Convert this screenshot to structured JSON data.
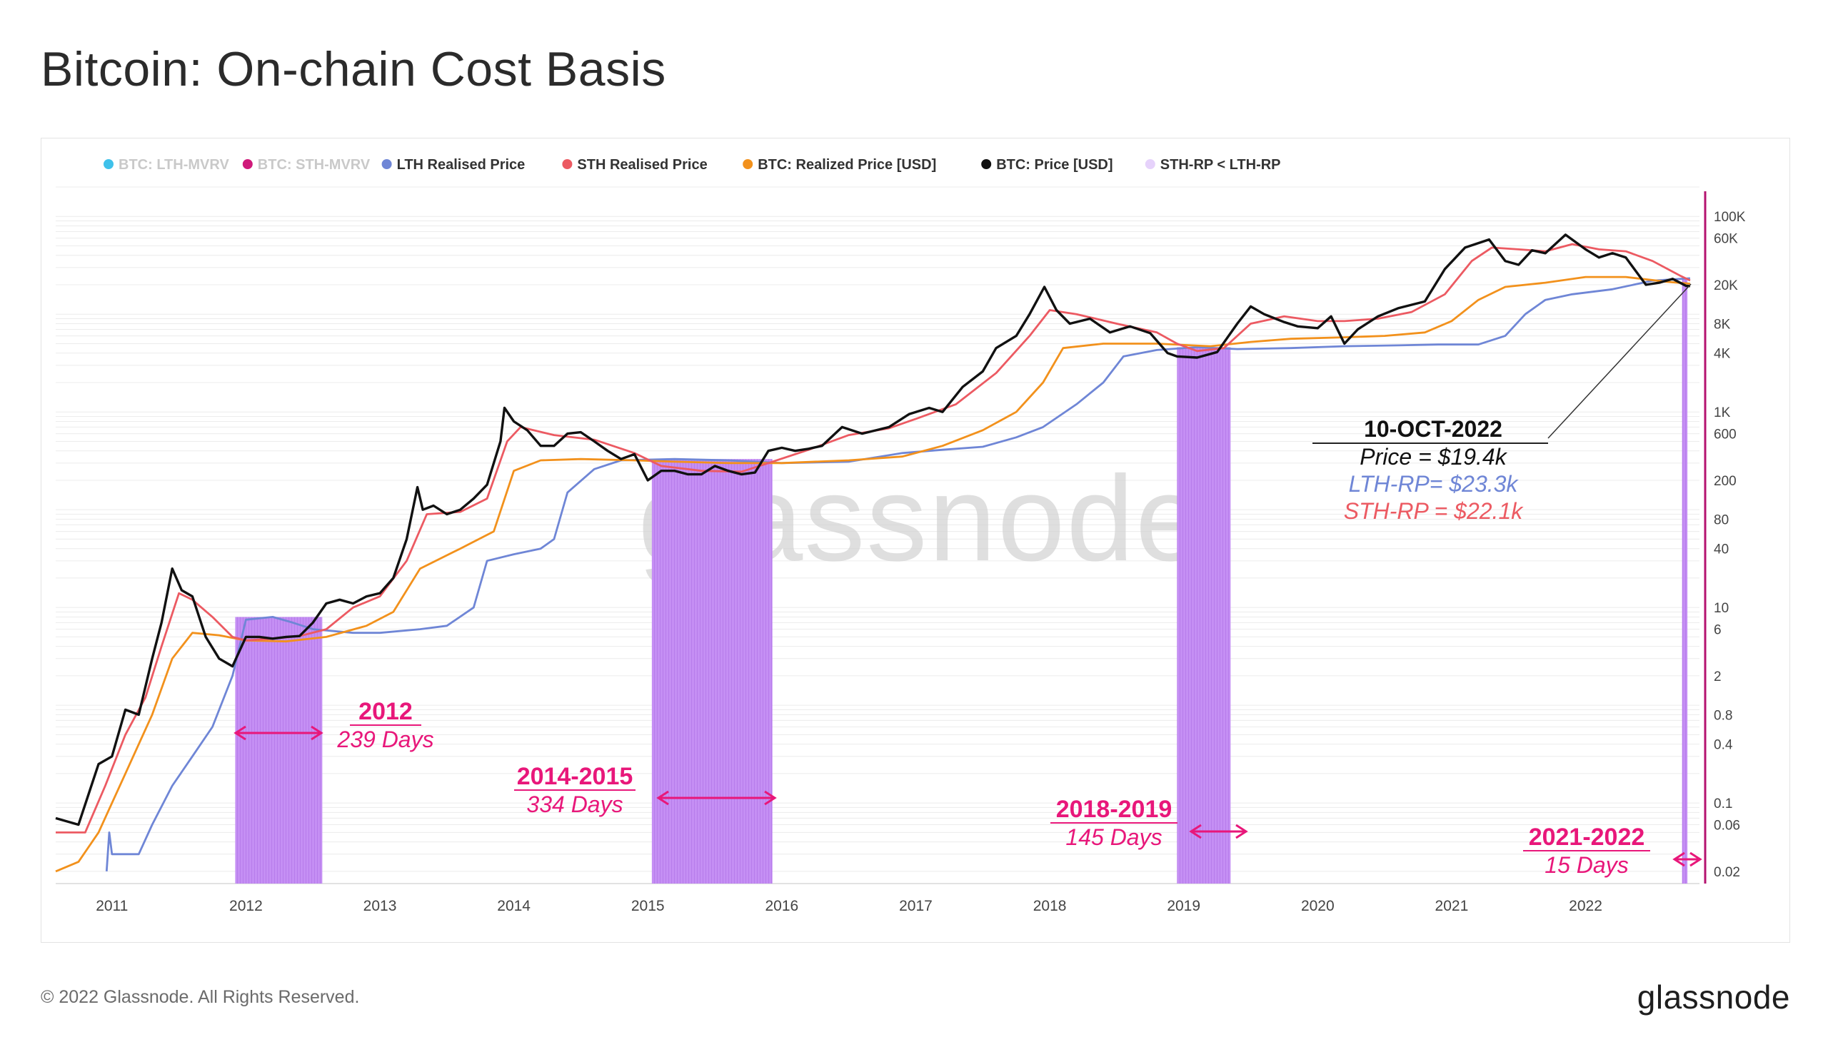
{
  "title": "Bitcoin: On-chain Cost Basis",
  "footer": "© 2022 Glassnode. All Rights Reserved.",
  "brand": "glassnode",
  "watermark": "glassnode",
  "colors": {
    "lth": "#6f86d6",
    "sth": "#ec5a62",
    "realized": "#f2911c",
    "price": "#111111",
    "shade": "#c490f2",
    "annot": "#e8177a",
    "axis": "#b4136f"
  },
  "chart_data": {
    "type": "line",
    "y_scale": "log",
    "ylim": [
      0.015,
      200000
    ],
    "xlim": [
      2010.58,
      2022.85
    ],
    "x_tick_labels": [
      "2011",
      "2012",
      "2013",
      "2014",
      "2015",
      "2016",
      "2017",
      "2018",
      "2019",
      "2020",
      "2021",
      "2022"
    ],
    "y_tick_labels": [
      "100K",
      "60K",
      "20K",
      "8K",
      "4K",
      "1K",
      "600",
      "200",
      "80",
      "40",
      "10",
      "6",
      "2",
      "0.8",
      "0.4",
      "0.1",
      "0.06",
      "0.02"
    ],
    "legend": [
      {
        "label": "BTC: LTH-MVRV",
        "color": "#3fc1ea",
        "muted": true
      },
      {
        "label": "BTC: STH-MVRV",
        "color": "#cf1a7a",
        "muted": true
      },
      {
        "label": "LTH Realised Price",
        "color": "#6f86d6",
        "muted": false
      },
      {
        "label": "STH Realised Price",
        "color": "#ec5a62",
        "muted": false
      },
      {
        "label": "BTC: Realized Price [USD]",
        "color": "#f2911c",
        "muted": false
      },
      {
        "label": "BTC: Price [USD]",
        "color": "#111111",
        "muted": false
      },
      {
        "label": "STH-RP < LTH-RP",
        "color": "#e6d2fb",
        "muted": false
      }
    ],
    "series": [
      {
        "name": "BTC: Price [USD]",
        "key": "price",
        "points": [
          [
            2010.58,
            0.07
          ],
          [
            2010.75,
            0.06
          ],
          [
            2010.9,
            0.25
          ],
          [
            2011.0,
            0.3
          ],
          [
            2011.1,
            0.9
          ],
          [
            2011.2,
            0.8
          ],
          [
            2011.3,
            3
          ],
          [
            2011.37,
            7
          ],
          [
            2011.45,
            25
          ],
          [
            2011.52,
            15
          ],
          [
            2011.6,
            13
          ],
          [
            2011.7,
            5
          ],
          [
            2011.8,
            3
          ],
          [
            2011.9,
            2.5
          ],
          [
            2012.0,
            5
          ],
          [
            2012.1,
            5
          ],
          [
            2012.2,
            4.8
          ],
          [
            2012.3,
            5
          ],
          [
            2012.4,
            5.1
          ],
          [
            2012.5,
            7
          ],
          [
            2012.6,
            11
          ],
          [
            2012.7,
            12
          ],
          [
            2012.8,
            11
          ],
          [
            2012.9,
            13
          ],
          [
            2013.0,
            14
          ],
          [
            2013.1,
            20
          ],
          [
            2013.2,
            50
          ],
          [
            2013.28,
            170
          ],
          [
            2013.32,
            100
          ],
          [
            2013.4,
            110
          ],
          [
            2013.5,
            90
          ],
          [
            2013.6,
            100
          ],
          [
            2013.7,
            130
          ],
          [
            2013.8,
            180
          ],
          [
            2013.9,
            500
          ],
          [
            2013.93,
            1100
          ],
          [
            2014.0,
            800
          ],
          [
            2014.1,
            650
          ],
          [
            2014.2,
            450
          ],
          [
            2014.3,
            450
          ],
          [
            2014.4,
            600
          ],
          [
            2014.5,
            620
          ],
          [
            2014.6,
            500
          ],
          [
            2014.7,
            400
          ],
          [
            2014.8,
            330
          ],
          [
            2014.9,
            370
          ],
          [
            2015.0,
            200
          ],
          [
            2015.1,
            250
          ],
          [
            2015.2,
            250
          ],
          [
            2015.3,
            230
          ],
          [
            2015.4,
            230
          ],
          [
            2015.5,
            280
          ],
          [
            2015.6,
            250
          ],
          [
            2015.7,
            230
          ],
          [
            2015.8,
            240
          ],
          [
            2015.9,
            400
          ],
          [
            2016.0,
            430
          ],
          [
            2016.1,
            400
          ],
          [
            2016.2,
            420
          ],
          [
            2016.3,
            450
          ],
          [
            2016.45,
            700
          ],
          [
            2016.6,
            600
          ],
          [
            2016.8,
            700
          ],
          [
            2016.95,
            950
          ],
          [
            2017.1,
            1100
          ],
          [
            2017.2,
            1000
          ],
          [
            2017.35,
            1800
          ],
          [
            2017.5,
            2600
          ],
          [
            2017.6,
            4500
          ],
          [
            2017.75,
            6000
          ],
          [
            2017.85,
            10000
          ],
          [
            2017.96,
            19000
          ],
          [
            2018.05,
            11000
          ],
          [
            2018.15,
            8000
          ],
          [
            2018.3,
            9000
          ],
          [
            2018.45,
            6500
          ],
          [
            2018.6,
            7500
          ],
          [
            2018.75,
            6400
          ],
          [
            2018.88,
            4000
          ],
          [
            2018.95,
            3700
          ],
          [
            2019.1,
            3600
          ],
          [
            2019.25,
            4100
          ],
          [
            2019.4,
            8000
          ],
          [
            2019.5,
            12000
          ],
          [
            2019.6,
            10000
          ],
          [
            2019.75,
            8300
          ],
          [
            2019.85,
            7500
          ],
          [
            2020.0,
            7200
          ],
          [
            2020.1,
            9500
          ],
          [
            2020.2,
            5000
          ],
          [
            2020.3,
            7000
          ],
          [
            2020.45,
            9500
          ],
          [
            2020.6,
            11500
          ],
          [
            2020.8,
            13500
          ],
          [
            2020.95,
            29000
          ],
          [
            2021.1,
            48000
          ],
          [
            2021.28,
            58000
          ],
          [
            2021.4,
            35000
          ],
          [
            2021.5,
            32000
          ],
          [
            2021.6,
            45000
          ],
          [
            2021.7,
            42000
          ],
          [
            2021.85,
            65000
          ],
          [
            2022.0,
            46000
          ],
          [
            2022.1,
            38000
          ],
          [
            2022.2,
            42000
          ],
          [
            2022.3,
            38000
          ],
          [
            2022.45,
            20000
          ],
          [
            2022.55,
            21000
          ],
          [
            2022.65,
            23000
          ],
          [
            2022.75,
            19500
          ],
          [
            2022.78,
            19400
          ]
        ]
      },
      {
        "name": "STH Realised Price",
        "key": "sth",
        "points": [
          [
            2010.58,
            0.05
          ],
          [
            2010.8,
            0.05
          ],
          [
            2010.95,
            0.15
          ],
          [
            2011.1,
            0.5
          ],
          [
            2011.25,
            1.2
          ],
          [
            2011.37,
            4
          ],
          [
            2011.5,
            14
          ],
          [
            2011.6,
            12
          ],
          [
            2011.75,
            8
          ],
          [
            2011.9,
            5
          ],
          [
            2012.0,
            4.6
          ],
          [
            2012.2,
            4.8
          ],
          [
            2012.4,
            5.1
          ],
          [
            2012.6,
            6
          ],
          [
            2012.8,
            10
          ],
          [
            2013.0,
            13
          ],
          [
            2013.2,
            30
          ],
          [
            2013.35,
            90
          ],
          [
            2013.6,
            95
          ],
          [
            2013.8,
            130
          ],
          [
            2013.95,
            500
          ],
          [
            2014.05,
            700
          ],
          [
            2014.3,
            580
          ],
          [
            2014.6,
            520
          ],
          [
            2014.9,
            380
          ],
          [
            2015.1,
            280
          ],
          [
            2015.4,
            250
          ],
          [
            2015.7,
            245
          ],
          [
            2015.9,
            300
          ],
          [
            2016.2,
            410
          ],
          [
            2016.5,
            580
          ],
          [
            2016.8,
            680
          ],
          [
            2017.0,
            850
          ],
          [
            2017.3,
            1200
          ],
          [
            2017.6,
            2500
          ],
          [
            2017.85,
            6000
          ],
          [
            2018.0,
            11000
          ],
          [
            2018.2,
            10000
          ],
          [
            2018.5,
            8000
          ],
          [
            2018.8,
            6500
          ],
          [
            2018.95,
            5000
          ],
          [
            2019.1,
            4200
          ],
          [
            2019.3,
            4500
          ],
          [
            2019.5,
            8000
          ],
          [
            2019.75,
            9500
          ],
          [
            2020.0,
            8500
          ],
          [
            2020.2,
            8500
          ],
          [
            2020.45,
            9000
          ],
          [
            2020.7,
            10500
          ],
          [
            2020.95,
            16000
          ],
          [
            2021.15,
            35000
          ],
          [
            2021.3,
            48000
          ],
          [
            2021.5,
            46000
          ],
          [
            2021.7,
            44000
          ],
          [
            2021.9,
            52000
          ],
          [
            2022.1,
            46000
          ],
          [
            2022.3,
            44000
          ],
          [
            2022.5,
            35000
          ],
          [
            2022.7,
            25000
          ],
          [
            2022.78,
            22100
          ]
        ]
      },
      {
        "name": "BTC: Realized Price [USD]",
        "key": "realized",
        "points": [
          [
            2010.58,
            0.02
          ],
          [
            2010.75,
            0.025
          ],
          [
            2010.9,
            0.05
          ],
          [
            2011.1,
            0.2
          ],
          [
            2011.3,
            0.8
          ],
          [
            2011.45,
            3
          ],
          [
            2011.6,
            5.5
          ],
          [
            2011.8,
            5.2
          ],
          [
            2012.0,
            4.6
          ],
          [
            2012.3,
            4.5
          ],
          [
            2012.6,
            5
          ],
          [
            2012.9,
            6.5
          ],
          [
            2013.1,
            9
          ],
          [
            2013.3,
            25
          ],
          [
            2013.6,
            40
          ],
          [
            2013.85,
            60
          ],
          [
            2014.0,
            250
          ],
          [
            2014.2,
            320
          ],
          [
            2014.5,
            330
          ],
          [
            2014.9,
            320
          ],
          [
            2015.2,
            310
          ],
          [
            2015.6,
            300
          ],
          [
            2016.0,
            300
          ],
          [
            2016.5,
            320
          ],
          [
            2016.9,
            350
          ],
          [
            2017.2,
            450
          ],
          [
            2017.5,
            650
          ],
          [
            2017.75,
            1000
          ],
          [
            2017.95,
            2000
          ],
          [
            2018.1,
            4500
          ],
          [
            2018.4,
            5000
          ],
          [
            2018.8,
            5000
          ],
          [
            2019.2,
            4700
          ],
          [
            2019.5,
            5200
          ],
          [
            2019.8,
            5600
          ],
          [
            2020.2,
            5800
          ],
          [
            2020.5,
            6000
          ],
          [
            2020.8,
            6500
          ],
          [
            2021.0,
            8500
          ],
          [
            2021.2,
            14000
          ],
          [
            2021.4,
            19000
          ],
          [
            2021.7,
            21000
          ],
          [
            2022.0,
            24000
          ],
          [
            2022.3,
            24000
          ],
          [
            2022.6,
            21500
          ],
          [
            2022.78,
            20500
          ]
        ]
      },
      {
        "name": "LTH Realised Price",
        "key": "lth",
        "points": [
          [
            2010.96,
            0.02
          ],
          [
            2010.98,
            0.05
          ],
          [
            2011.0,
            0.03
          ],
          [
            2011.2,
            0.03
          ],
          [
            2011.3,
            0.06
          ],
          [
            2011.45,
            0.15
          ],
          [
            2011.6,
            0.3
          ],
          [
            2011.75,
            0.6
          ],
          [
            2011.9,
            2
          ],
          [
            2012.0,
            7.5
          ],
          [
            2012.2,
            8
          ],
          [
            2012.35,
            7
          ],
          [
            2012.5,
            6
          ],
          [
            2012.8,
            5.5
          ],
          [
            2013.0,
            5.5
          ],
          [
            2013.3,
            6
          ],
          [
            2013.5,
            6.5
          ],
          [
            2013.7,
            10
          ],
          [
            2013.8,
            30
          ],
          [
            2014.0,
            35
          ],
          [
            2014.2,
            40
          ],
          [
            2014.3,
            50
          ],
          [
            2014.4,
            150
          ],
          [
            2014.6,
            260
          ],
          [
            2014.8,
            320
          ],
          [
            2015.2,
            330
          ],
          [
            2015.6,
            320
          ],
          [
            2016.0,
            300
          ],
          [
            2016.5,
            310
          ],
          [
            2016.9,
            380
          ],
          [
            2017.2,
            410
          ],
          [
            2017.5,
            440
          ],
          [
            2017.75,
            550
          ],
          [
            2017.95,
            700
          ],
          [
            2018.2,
            1200
          ],
          [
            2018.4,
            2000
          ],
          [
            2018.55,
            3700
          ],
          [
            2018.8,
            4300
          ],
          [
            2019.1,
            4600
          ],
          [
            2019.4,
            4400
          ],
          [
            2019.8,
            4500
          ],
          [
            2020.2,
            4700
          ],
          [
            2020.6,
            4800
          ],
          [
            2020.9,
            4900
          ],
          [
            2021.2,
            4900
          ],
          [
            2021.4,
            6000
          ],
          [
            2021.55,
            10000
          ],
          [
            2021.7,
            14000
          ],
          [
            2021.9,
            16000
          ],
          [
            2022.2,
            18000
          ],
          [
            2022.5,
            22000
          ],
          [
            2022.78,
            23300
          ]
        ]
      }
    ],
    "shaded_regions": [
      [
        2011.92,
        2012.57
      ],
      [
        2015.03,
        2015.93
      ],
      [
        2018.95,
        2019.35
      ],
      [
        2022.72,
        2022.76
      ]
    ],
    "cycles": [
      {
        "label": "2012",
        "days": "239 Days"
      },
      {
        "label": "2014-2015",
        "days": "334 Days"
      },
      {
        "label": "2018-2019",
        "days": "145 Days"
      },
      {
        "label": "2021-2022",
        "days": "15 Days"
      }
    ],
    "callout": {
      "date": "10-OCT-2022",
      "price": "Price = $19.4k",
      "lth": "LTH-RP= $23.3k",
      "sth": "STH-RP = $22.1k"
    }
  }
}
